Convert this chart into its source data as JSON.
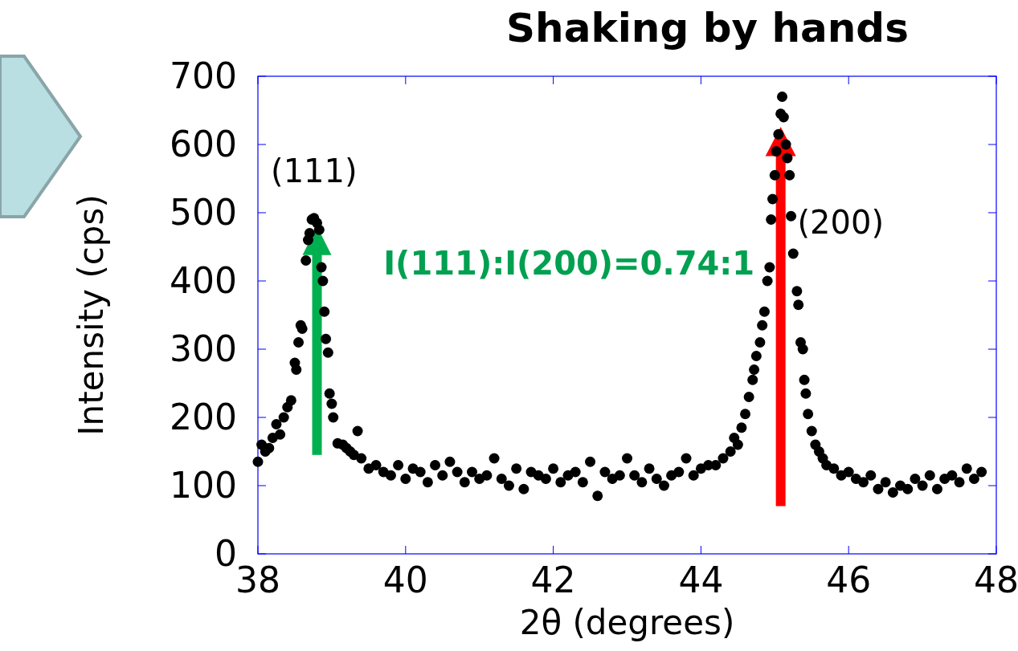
{
  "chart_data": {
    "type": "scatter",
    "title": "Shaking by hands",
    "xlabel": "2θ (degrees)",
    "ylabel": "Intensity (cps)",
    "xlim": [
      38,
      48
    ],
    "xticks": [
      38,
      40,
      42,
      44,
      46,
      48
    ],
    "ylim": [
      0,
      700
    ],
    "yticks": [
      0,
      100,
      200,
      300,
      400,
      500,
      600,
      700
    ],
    "grid": false,
    "marker": "circle",
    "annotations": [
      {
        "text": "(111)",
        "x": 38.76,
        "y": 492
      },
      {
        "text": "(200)",
        "x": 45.22,
        "y": 495
      },
      "I(111):I(200)=0.74:1"
    ],
    "series": [
      {
        "color": "#000000",
        "x": [
          38.0,
          38.05,
          38.1,
          38.15,
          38.2,
          38.25,
          38.3,
          38.35,
          38.4,
          38.45,
          38.5,
          38.52,
          38.55,
          38.58,
          38.6,
          38.65,
          38.68,
          38.7,
          38.73,
          38.76,
          38.8,
          38.83,
          38.86,
          38.88,
          38.9,
          38.92,
          38.95,
          38.97,
          39.0,
          39.02,
          39.08,
          39.15,
          39.2,
          39.25,
          39.3,
          39.35,
          39.4,
          39.5,
          39.6,
          39.7,
          39.8,
          39.9,
          40.0,
          40.1,
          40.2,
          40.3,
          40.4,
          40.5,
          40.6,
          40.7,
          40.8,
          40.9,
          41.0,
          41.1,
          41.2,
          41.3,
          41.4,
          41.5,
          41.6,
          41.7,
          41.8,
          41.9,
          42.0,
          42.1,
          42.2,
          42.3,
          42.4,
          42.5,
          42.6,
          42.7,
          42.8,
          42.9,
          43.0,
          43.1,
          43.2,
          43.3,
          43.4,
          43.5,
          43.6,
          43.7,
          43.8,
          43.9,
          44.0,
          44.1,
          44.2,
          44.3,
          44.4,
          44.45,
          44.5,
          44.55,
          44.6,
          44.65,
          44.7,
          44.72,
          44.75,
          44.8,
          44.83,
          44.86,
          44.9,
          44.93,
          44.95,
          44.97,
          45.0,
          45.02,
          45.05,
          45.08,
          45.1,
          45.12,
          45.15,
          45.17,
          45.2,
          45.22,
          45.25,
          45.3,
          45.32,
          45.35,
          45.38,
          45.4,
          45.42,
          45.45,
          45.5,
          45.55,
          45.6,
          45.65,
          45.7,
          45.8,
          45.9,
          46.0,
          46.1,
          46.2,
          46.3,
          46.4,
          46.5,
          46.6,
          46.7,
          46.8,
          46.9,
          47.0,
          47.1,
          47.2,
          47.3,
          47.4,
          47.5,
          47.6,
          47.7,
          47.8
        ],
        "values": [
          135,
          160,
          150,
          155,
          170,
          190,
          175,
          200,
          215,
          225,
          280,
          270,
          310,
          335,
          330,
          430,
          460,
          470,
          490,
          492,
          485,
          475,
          420,
          400,
          355,
          315,
          295,
          235,
          220,
          200,
          162,
          160,
          155,
          150,
          145,
          180,
          140,
          125,
          130,
          120,
          115,
          130,
          110,
          125,
          120,
          105,
          130,
          115,
          135,
          120,
          105,
          120,
          110,
          115,
          140,
          110,
          100,
          125,
          95,
          120,
          115,
          110,
          125,
          105,
          115,
          120,
          105,
          135,
          85,
          120,
          110,
          115,
          140,
          115,
          105,
          125,
          110,
          100,
          115,
          120,
          140,
          115,
          125,
          130,
          130,
          140,
          150,
          170,
          160,
          185,
          205,
          230,
          255,
          270,
          290,
          310,
          335,
          355,
          400,
          420,
          490,
          520,
          555,
          590,
          615,
          645,
          670,
          640,
          600,
          580,
          555,
          495,
          440,
          385,
          365,
          310,
          300,
          255,
          235,
          205,
          180,
          160,
          150,
          140,
          130,
          125,
          115,
          120,
          110,
          105,
          115,
          95,
          105,
          90,
          100,
          95,
          110,
          100,
          115,
          95,
          110,
          115,
          105,
          125,
          110,
          120
        ]
      }
    ]
  }
}
